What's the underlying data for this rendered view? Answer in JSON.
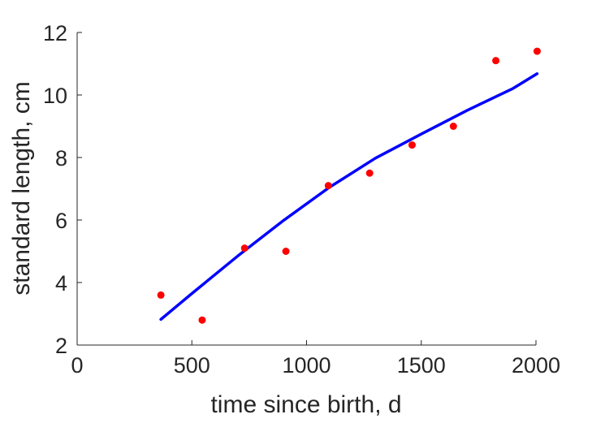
{
  "chart_data": {
    "type": "scatter",
    "title": "",
    "xlabel": "time since birth, d",
    "ylabel": "standard length, cm",
    "xlim": [
      0,
      2000
    ],
    "ylim": [
      2,
      12
    ],
    "xticks": [
      0,
      500,
      1000,
      1500,
      2000
    ],
    "yticks": [
      2,
      4,
      6,
      8,
      10,
      12
    ],
    "grid": false,
    "legend": "none",
    "series": [
      {
        "kind": "scatter",
        "color": "#ff0000",
        "points": [
          {
            "x": 365,
            "y": 3.6
          },
          {
            "x": 545,
            "y": 2.8
          },
          {
            "x": 730,
            "y": 5.1
          },
          {
            "x": 910,
            "y": 5.0
          },
          {
            "x": 1095,
            "y": 7.1
          },
          {
            "x": 1275,
            "y": 7.5
          },
          {
            "x": 1460,
            "y": 8.4
          },
          {
            "x": 1640,
            "y": 9.0
          },
          {
            "x": 1825,
            "y": 11.1
          },
          {
            "x": 2005,
            "y": 11.4
          }
        ]
      },
      {
        "kind": "line",
        "color": "#0000ff",
        "points": [
          {
            "x": 365,
            "y": 2.82
          },
          {
            "x": 500,
            "y": 3.65
          },
          {
            "x": 700,
            "y": 4.85
          },
          {
            "x": 900,
            "y": 5.99
          },
          {
            "x": 1100,
            "y": 7.05
          },
          {
            "x": 1300,
            "y": 7.98
          },
          {
            "x": 1500,
            "y": 8.75
          },
          {
            "x": 1700,
            "y": 9.51
          },
          {
            "x": 1900,
            "y": 10.21
          },
          {
            "x": 2005,
            "y": 10.68
          }
        ]
      }
    ]
  }
}
